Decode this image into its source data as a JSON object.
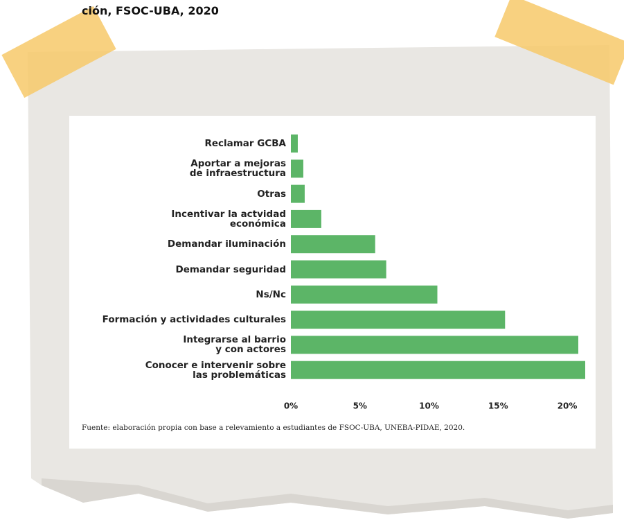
{
  "chart_data": {
    "type": "bar",
    "orientation": "horizontal",
    "title": "ción, FSOC-UBA, 2020",
    "categories": [
      "Reclamar GCBA",
      "Aportar a mejoras\nde infraestructura",
      "Otras",
      "Incentivar la actvidad\neconómica",
      "Demandar iluminación",
      "Demandar seguridad",
      "Ns/Nc",
      "Formación y actividades culturales",
      "Integrarse al barrio\ny con actores",
      "Conocer e intervenir sobre\nlas problemáticas"
    ],
    "values": [
      0.5,
      0.9,
      1.0,
      2.2,
      6.1,
      6.9,
      10.6,
      15.5,
      20.8,
      21.3
    ],
    "color": "#5cb567",
    "xlim": [
      0,
      21.3
    ],
    "xticks": [
      {
        "value": 0,
        "label": "0%"
      },
      {
        "value": 5,
        "label": "5%"
      },
      {
        "value": 10,
        "label": "10%"
      },
      {
        "value": 15,
        "label": "15%"
      },
      {
        "value": 20,
        "label": "20%"
      }
    ],
    "source": "Fuente: elaboración propia con base a relevamiento a estudiantes de FSOC-UBA, UNEBA-PIDAE, 2020."
  }
}
